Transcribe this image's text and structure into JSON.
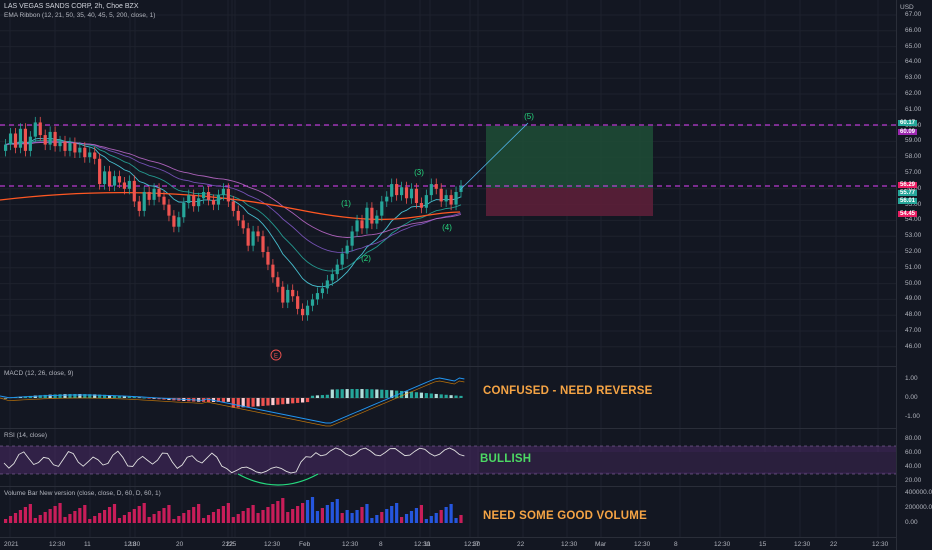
{
  "symbol_title": "LAS VEGAS SANDS CORP, 2h, Choe BZX",
  "indicator_ema": "EMA Ribbon (12, 21, 50, 35, 40, 45, 5, 200, close, 1)",
  "indicator_macd": "MACD (12, 26, close, 9)",
  "indicator_rsi": "RSI (14, close)",
  "indicator_volume": "Volume Bar New version (close, close, D, 60, D, 60, 1)",
  "currency": "USD",
  "annotations": {
    "macd_note": "CONFUSED - NEED REVERSE",
    "rsi_note": "BULLISH",
    "volume_note": "NEED SOME GOOD VOLUME"
  },
  "wave_labels": [
    "(1)",
    "(2)",
    "(3)",
    "(4)",
    "(5)"
  ],
  "circle_label": "E",
  "price_axis": [
    "67.00",
    "66.00",
    "65.00",
    "64.00",
    "63.00",
    "62.00",
    "61.00",
    "60.00",
    "59.00",
    "58.00",
    "57.00",
    "56.00",
    "55.00",
    "54.00",
    "53.00",
    "52.00",
    "51.00",
    "50.00",
    "49.00",
    "48.00",
    "47.00",
    "46.00"
  ],
  "price_tags": [
    {
      "text": "60.17",
      "color": "#26a69a"
    },
    {
      "text": "60.09",
      "color": "#9c27b0"
    },
    {
      "text": "56.29",
      "color": "#e91e63"
    },
    {
      "text": "55.77",
      "color": "#26a69a"
    },
    {
      "text": "56.01",
      "color": "#26a69a"
    },
    {
      "text": "54.45",
      "color": "#e91e63"
    }
  ],
  "macd_axis": [
    "1.00",
    "0.00",
    "-1.00"
  ],
  "rsi_axis": [
    "80.00",
    "60.00",
    "40.00",
    "20.00"
  ],
  "volume_axis": [
    "400000.00",
    "200000.00",
    "0.00"
  ],
  "time_axis": [
    "2021",
    "12:30",
    "11",
    "12:30",
    "18",
    "20",
    "21",
    "22",
    "25",
    "12:30",
    "Feb",
    "12:30",
    "8",
    "12:30",
    "11",
    "12:30",
    "17",
    "22",
    "12:30",
    "Mar",
    "12:30",
    "8",
    "12:30",
    "15",
    "12:30",
    "22",
    "12:30"
  ],
  "colors": {
    "up": "#26a69a",
    "down": "#ef5350",
    "bg": "#131722",
    "ribbon_fast": "#4dd0e1",
    "ribbon_slow": "#ba68c8",
    "ema200": "#ff5722",
    "target_zone": "#1e5a3c",
    "stop_zone": "#6b1f3a"
  }
}
